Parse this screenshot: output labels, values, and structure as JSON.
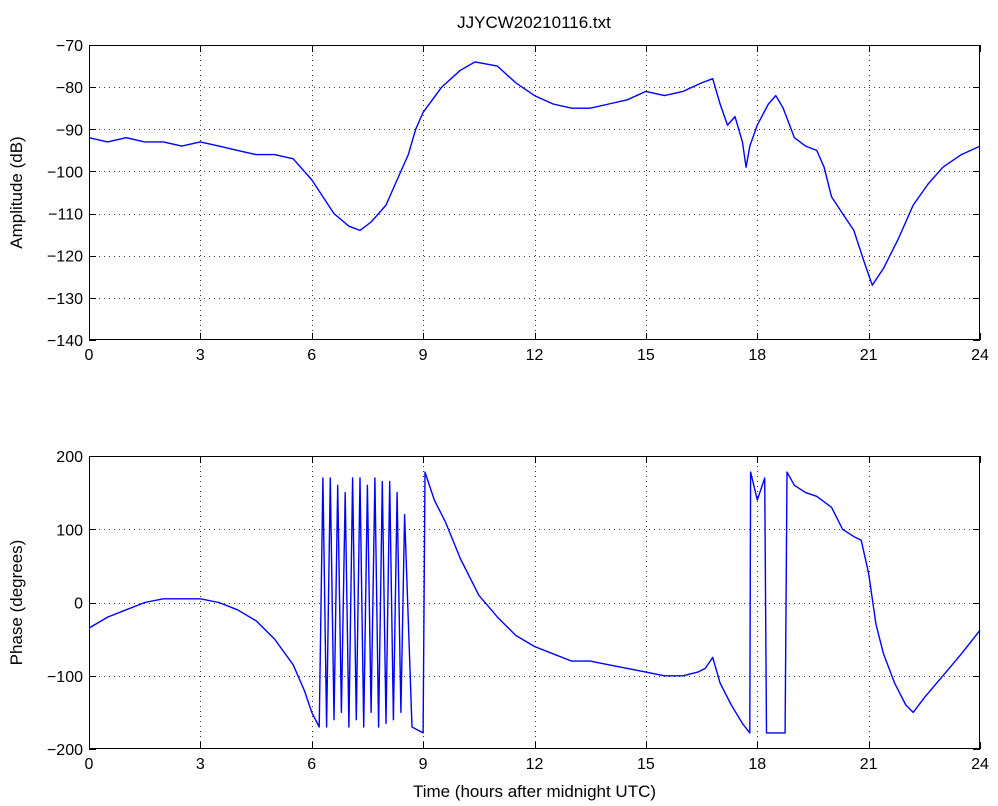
{
  "figure": {
    "title": "JJYCW20210116.txt"
  },
  "chart_data": [
    {
      "type": "line",
      "title": "JJYCW20210116.txt",
      "xlabel": "",
      "ylabel": "Amplitude (dB)",
      "xlim": [
        0,
        24
      ],
      "ylim": [
        -140,
        -70
      ],
      "xticks": [
        0,
        3,
        6,
        9,
        12,
        15,
        18,
        21,
        24
      ],
      "yticks": [
        -140,
        -130,
        -120,
        -110,
        -100,
        -90,
        -80,
        -70
      ],
      "xtick_labels": [
        "0",
        "3",
        "6",
        "9",
        "12",
        "15",
        "18",
        "21",
        "24"
      ],
      "ytick_labels": [
        "−140",
        "−130",
        "−120",
        "−110",
        "−100",
        "−90",
        "−80",
        "−70"
      ],
      "grid": true,
      "color": "#0000ff",
      "series": [
        {
          "points": [
            [
              0.0,
              -92
            ],
            [
              0.5,
              -93
            ],
            [
              1.0,
              -92
            ],
            [
              1.5,
              -93
            ],
            [
              2.0,
              -93
            ],
            [
              2.5,
              -94
            ],
            [
              3.0,
              -93
            ],
            [
              3.5,
              -94
            ],
            [
              4.0,
              -95
            ],
            [
              4.5,
              -96
            ],
            [
              5.0,
              -96
            ],
            [
              5.5,
              -97
            ],
            [
              5.8,
              -100
            ],
            [
              6.0,
              -102
            ],
            [
              6.3,
              -106
            ],
            [
              6.6,
              -110
            ],
            [
              7.0,
              -113
            ],
            [
              7.3,
              -114
            ],
            [
              7.6,
              -112
            ],
            [
              8.0,
              -108
            ],
            [
              8.3,
              -102
            ],
            [
              8.6,
              -96
            ],
            [
              8.8,
              -90
            ],
            [
              9.0,
              -86
            ],
            [
              9.5,
              -80
            ],
            [
              10.0,
              -76
            ],
            [
              10.4,
              -74
            ],
            [
              11.0,
              -75
            ],
            [
              11.5,
              -79
            ],
            [
              12.0,
              -82
            ],
            [
              12.5,
              -84
            ],
            [
              13.0,
              -85
            ],
            [
              13.5,
              -85
            ],
            [
              14.0,
              -84
            ],
            [
              14.5,
              -83
            ],
            [
              15.0,
              -81
            ],
            [
              15.5,
              -82
            ],
            [
              16.0,
              -81
            ],
            [
              16.5,
              -79
            ],
            [
              16.8,
              -78
            ],
            [
              17.0,
              -84
            ],
            [
              17.2,
              -89
            ],
            [
              17.4,
              -87
            ],
            [
              17.6,
              -93
            ],
            [
              17.7,
              -99
            ],
            [
              17.8,
              -94
            ],
            [
              18.0,
              -89
            ],
            [
              18.3,
              -84
            ],
            [
              18.5,
              -82
            ],
            [
              18.7,
              -85
            ],
            [
              19.0,
              -92
            ],
            [
              19.3,
              -94
            ],
            [
              19.6,
              -95
            ],
            [
              19.8,
              -99
            ],
            [
              20.0,
              -106
            ],
            [
              20.3,
              -110
            ],
            [
              20.6,
              -114
            ],
            [
              20.9,
              -122
            ],
            [
              21.1,
              -127
            ],
            [
              21.4,
              -123
            ],
            [
              21.8,
              -116
            ],
            [
              22.2,
              -108
            ],
            [
              22.6,
              -103
            ],
            [
              23.0,
              -99
            ],
            [
              23.5,
              -96
            ],
            [
              24.0,
              -94
            ]
          ]
        }
      ]
    },
    {
      "type": "line",
      "title": "",
      "xlabel": "Time (hours after midnight UTC)",
      "ylabel": "Phase (degrees)",
      "xlim": [
        0,
        24
      ],
      "ylim": [
        -200,
        200
      ],
      "xticks": [
        0,
        3,
        6,
        9,
        12,
        15,
        18,
        21,
        24
      ],
      "yticks": [
        -200,
        -100,
        0,
        100,
        200
      ],
      "xtick_labels": [
        "0",
        "3",
        "6",
        "9",
        "12",
        "15",
        "18",
        "21",
        "24"
      ],
      "ytick_labels": [
        "−200",
        "−100",
        "0",
        "100",
        "200"
      ],
      "grid": true,
      "color": "#0000ff",
      "series": [
        {
          "points": [
            [
              0.0,
              -35
            ],
            [
              0.5,
              -20
            ],
            [
              1.0,
              -10
            ],
            [
              1.5,
              0
            ],
            [
              2.0,
              5
            ],
            [
              2.5,
              5
            ],
            [
              3.0,
              5
            ],
            [
              3.5,
              0
            ],
            [
              4.0,
              -10
            ],
            [
              4.5,
              -25
            ],
            [
              5.0,
              -50
            ],
            [
              5.5,
              -85
            ],
            [
              5.8,
              -120
            ],
            [
              6.0,
              -150
            ],
            [
              6.2,
              -170
            ],
            [
              6.3,
              170
            ],
            [
              6.4,
              -170
            ],
            [
              6.5,
              170
            ],
            [
              6.6,
              -160
            ],
            [
              6.7,
              160
            ],
            [
              6.8,
              -150
            ],
            [
              6.9,
              150
            ],
            [
              7.0,
              -170
            ],
            [
              7.1,
              170
            ],
            [
              7.2,
              -160
            ],
            [
              7.3,
              170
            ],
            [
              7.4,
              -170
            ],
            [
              7.5,
              160
            ],
            [
              7.6,
              -150
            ],
            [
              7.7,
              170
            ],
            [
              7.8,
              -170
            ],
            [
              7.9,
              165
            ],
            [
              8.0,
              -165
            ],
            [
              8.1,
              165
            ],
            [
              8.2,
              -160
            ],
            [
              8.3,
              150
            ],
            [
              8.4,
              -150
            ],
            [
              8.5,
              120
            ],
            [
              8.7,
              -170
            ],
            [
              9.0,
              -178
            ],
            [
              9.05,
              178
            ],
            [
              9.3,
              140
            ],
            [
              9.6,
              110
            ],
            [
              10.0,
              60
            ],
            [
              10.5,
              10
            ],
            [
              11.0,
              -20
            ],
            [
              11.5,
              -45
            ],
            [
              12.0,
              -60
            ],
            [
              12.5,
              -70
            ],
            [
              13.0,
              -80
            ],
            [
              13.5,
              -80
            ],
            [
              14.0,
              -85
            ],
            [
              14.5,
              -90
            ],
            [
              15.0,
              -95
            ],
            [
              15.5,
              -100
            ],
            [
              16.0,
              -100
            ],
            [
              16.4,
              -95
            ],
            [
              16.6,
              -90
            ],
            [
              16.8,
              -75
            ],
            [
              17.0,
              -110
            ],
            [
              17.3,
              -140
            ],
            [
              17.6,
              -165
            ],
            [
              17.8,
              -178
            ],
            [
              17.82,
              178
            ],
            [
              18.0,
              140
            ],
            [
              18.2,
              170
            ],
            [
              18.25,
              -178
            ],
            [
              18.6,
              -178
            ],
            [
              18.75,
              -178
            ],
            [
              18.8,
              178
            ],
            [
              19.0,
              160
            ],
            [
              19.3,
              150
            ],
            [
              19.6,
              145
            ],
            [
              20.0,
              130
            ],
            [
              20.3,
              100
            ],
            [
              20.6,
              90
            ],
            [
              20.8,
              85
            ],
            [
              21.0,
              40
            ],
            [
              21.2,
              -30
            ],
            [
              21.4,
              -70
            ],
            [
              21.7,
              -110
            ],
            [
              22.0,
              -140
            ],
            [
              22.2,
              -150
            ],
            [
              22.5,
              -130
            ],
            [
              23.0,
              -100
            ],
            [
              23.5,
              -70
            ],
            [
              24.0,
              -38
            ]
          ]
        }
      ]
    }
  ]
}
